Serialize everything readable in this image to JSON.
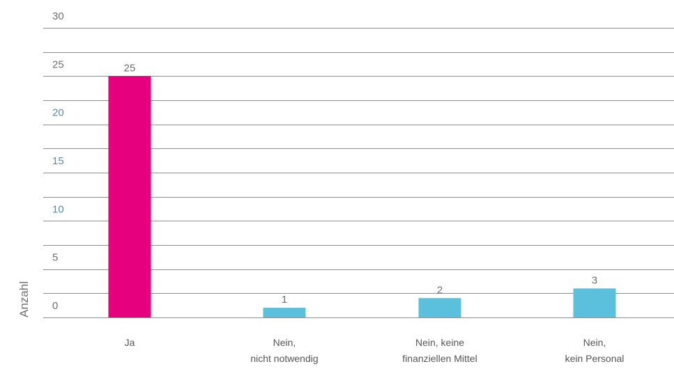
{
  "chart_data": {
    "type": "bar",
    "ylabel": "Anzahl",
    "xlabel": "",
    "title": "",
    "ylim": [
      0,
      30
    ],
    "yticks": [
      0,
      5,
      10,
      15,
      20,
      25,
      30
    ],
    "grid": true,
    "categories": [
      [
        "Ja"
      ],
      [
        "Nein,",
        "nicht notwendig"
      ],
      [
        "Nein, keine",
        "finanziellen Mittel"
      ],
      [
        "Nein,",
        "kein Personal"
      ]
    ],
    "values": [
      25,
      1,
      2,
      3
    ],
    "colors": [
      "#e6007e",
      "#5bc0dc",
      "#5bc0dc",
      "#5bc0dc"
    ],
    "gridline_color": "#8c8c8c",
    "tick_label_color": "#6f6f6f",
    "tick_label_accent_color": "#5a8aa6"
  }
}
